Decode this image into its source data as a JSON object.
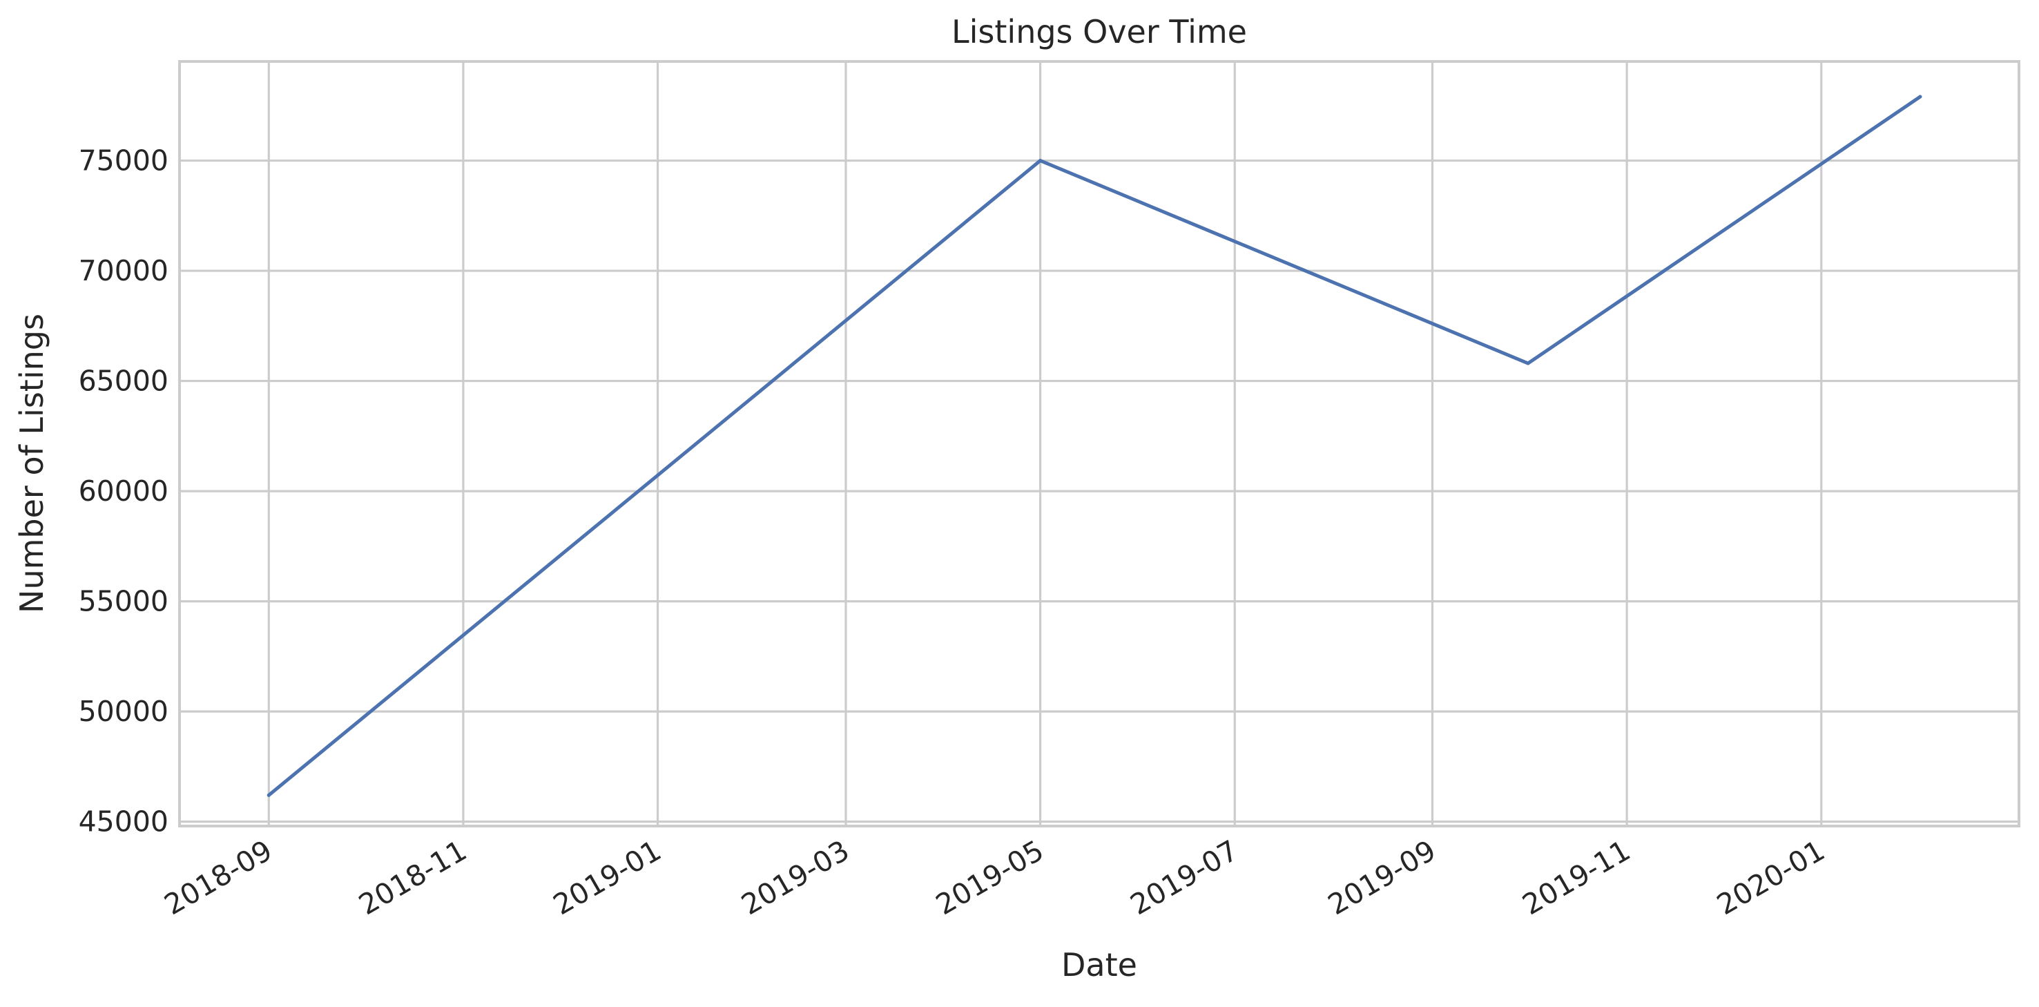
{
  "chart_data": {
    "type": "line",
    "title": "Listings Over Time",
    "xlabel": "Date",
    "ylabel": "Number of Listings",
    "grid": true,
    "x_tick_labels": [
      "2018-09",
      "2018-11",
      "2019-01",
      "2019-03",
      "2019-05",
      "2019-07",
      "2019-09",
      "2019-11",
      "2020-01"
    ],
    "x_ticks": [
      "2018-09-01",
      "2018-11-01",
      "2019-01-01",
      "2019-03-01",
      "2019-05-01",
      "2019-07-01",
      "2019-09-01",
      "2019-11-01",
      "2020-01-01"
    ],
    "y_tick_labels": [
      "45000",
      "50000",
      "55000",
      "60000",
      "65000",
      "70000",
      "75000"
    ],
    "y_ticks": [
      45000,
      50000,
      55000,
      60000,
      65000,
      70000,
      75000
    ],
    "xlim": [
      "2018-08-04",
      "2020-03-03"
    ],
    "ylim": [
      44800,
      79500
    ],
    "series": [
      {
        "color": "#4c72b0",
        "x": [
          "2018-09-01",
          "2019-05-01",
          "2019-10-01",
          "2020-02-01"
        ],
        "y": [
          46200,
          75000,
          65800,
          77900
        ]
      }
    ]
  }
}
